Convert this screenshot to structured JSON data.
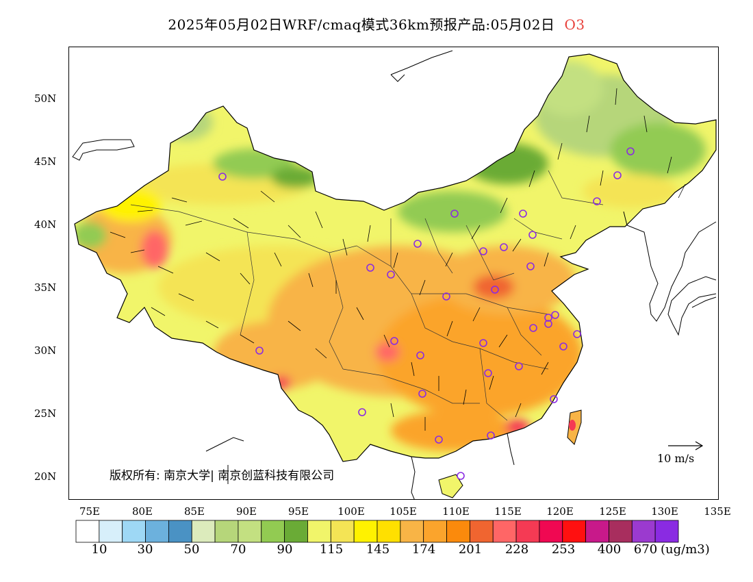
{
  "title": {
    "main": "2025年05月02日WRF/cmaq模式36km预报产品:05月02日",
    "pollutant": "O3"
  },
  "axes": {
    "lat_ticks": [
      "50N",
      "45N",
      "40N",
      "35N",
      "30N",
      "25N",
      "20N"
    ],
    "lon_ticks": [
      "75E",
      "80E",
      "85E",
      "90E",
      "95E",
      "100E",
      "105E",
      "110E",
      "115E",
      "120E",
      "125E",
      "130E",
      "135E"
    ]
  },
  "copyright": "版权所有: 南京大学| 南京创蓝科技有限公司",
  "wind_scale_label": "10 m/s",
  "colorbar": {
    "colors": [
      "#ffffff",
      "#d7effa",
      "#9ed8f5",
      "#6cb1dd",
      "#4a92c4",
      "#dcebbc",
      "#b6d67a",
      "#c3e081",
      "#92cb52",
      "#6aab36",
      "#f1f56a",
      "#f4e455",
      "#fff200",
      "#ffe000",
      "#f8b446",
      "#fba42c",
      "#fb8a0c",
      "#f06530",
      "#ff6666",
      "#f53a54",
      "#f00852",
      "#ff1010",
      "#c8198a",
      "#a82e5e",
      "#9b3acf",
      "#8a2be2"
    ],
    "labels": [
      "10",
      "30",
      "50",
      "70",
      "90",
      "115",
      "145",
      "174",
      "201",
      "228",
      "253",
      "400",
      "670"
    ],
    "units": "(ug/m3)"
  }
}
